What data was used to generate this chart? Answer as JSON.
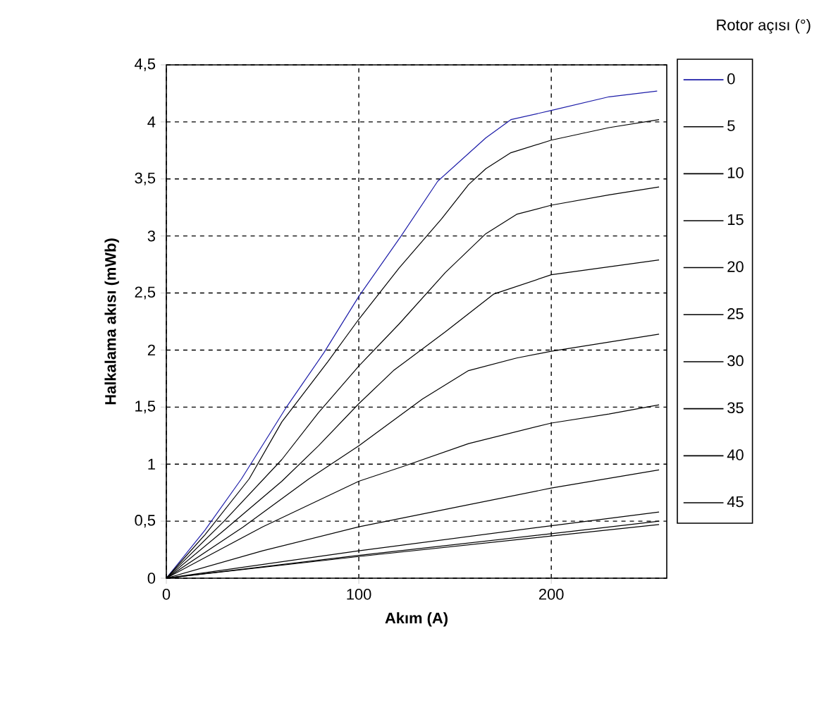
{
  "chart_data": {
    "type": "line",
    "xlabel": "Akım (A)",
    "ylabel": "Halkalama akısı (mWb)",
    "legend_title": "Rotor açısı (°)",
    "legend": "right",
    "grid": true,
    "marker": "none",
    "line_style": "solid",
    "xlim": [
      0,
      260
    ],
    "xticks": [
      0,
      100,
      200
    ],
    "ylim": [
      0,
      4.5
    ],
    "yticks": [
      {
        "value": 0,
        "label": "0"
      },
      {
        "value": 0.5,
        "label": "0,5"
      },
      {
        "value": 1,
        "label": "1"
      },
      {
        "value": 1.5,
        "label": "1,5"
      },
      {
        "value": 2,
        "label": "2"
      },
      {
        "value": 2.5,
        "label": "2,5"
      },
      {
        "value": 3,
        "label": "3"
      },
      {
        "value": 3.5,
        "label": "3,5"
      },
      {
        "value": 4,
        "label": "4"
      },
      {
        "value": 4.5,
        "label": "4,5"
      }
    ],
    "series": [
      {
        "name": "0",
        "color": "#1c1ca8",
        "x": [
          0,
          20,
          39,
          62,
          82,
          100,
          122,
          141,
          166,
          179,
          200,
          230,
          255
        ],
        "values": [
          0,
          0.42,
          0.87,
          1.49,
          1.98,
          2.47,
          3.0,
          3.48,
          3.86,
          4.02,
          4.1,
          4.22,
          4.27
        ]
      },
      {
        "name": "5",
        "color": "#000000",
        "x": [
          0,
          20,
          43,
          60,
          84,
          100,
          121,
          143,
          157,
          166,
          179,
          200,
          230,
          256
        ],
        "values": [
          0,
          0.38,
          0.87,
          1.37,
          1.9,
          2.27,
          2.72,
          3.15,
          3.45,
          3.59,
          3.73,
          3.84,
          3.95,
          4.02
        ]
      },
      {
        "name": "10",
        "color": "#000000",
        "x": [
          0,
          30,
          60,
          79,
          100,
          121,
          145,
          166,
          182,
          200,
          230,
          256
        ],
        "values": [
          0,
          0.5,
          1.04,
          1.45,
          1.86,
          2.23,
          2.68,
          3.02,
          3.19,
          3.27,
          3.36,
          3.43
        ]
      },
      {
        "name": "15",
        "color": "#000000",
        "x": [
          0,
          30,
          60,
          79,
          100,
          118,
          145,
          170,
          200,
          230,
          256
        ],
        "values": [
          0,
          0.42,
          0.85,
          1.16,
          1.53,
          1.82,
          2.16,
          2.49,
          2.66,
          2.73,
          2.79
        ]
      },
      {
        "name": "20",
        "color": "#000000",
        "x": [
          0,
          40,
          74,
          100,
          133,
          157,
          182,
          200,
          230,
          256
        ],
        "values": [
          0,
          0.45,
          0.87,
          1.16,
          1.57,
          1.82,
          1.93,
          1.99,
          2.07,
          2.14
        ]
      },
      {
        "name": "25",
        "color": "#000000",
        "x": [
          0,
          50,
          100,
          123,
          157,
          200,
          230,
          256
        ],
        "values": [
          0,
          0.45,
          0.85,
          0.98,
          1.18,
          1.36,
          1.44,
          1.52
        ]
      },
      {
        "name": "30",
        "color": "#000000",
        "x": [
          0,
          50,
          100,
          150,
          200,
          256
        ],
        "values": [
          0,
          0.24,
          0.45,
          0.62,
          0.79,
          0.95
        ]
      },
      {
        "name": "35",
        "color": "#000000",
        "x": [
          0,
          100,
          200,
          256
        ],
        "values": [
          0,
          0.24,
          0.46,
          0.58
        ]
      },
      {
        "name": "40",
        "color": "#000000",
        "x": [
          0,
          100,
          200,
          256
        ],
        "values": [
          0,
          0.2,
          0.39,
          0.5
        ]
      },
      {
        "name": "45",
        "color": "#000000",
        "x": [
          0,
          100,
          200,
          256
        ],
        "values": [
          0,
          0.19,
          0.37,
          0.47
        ]
      }
    ]
  }
}
